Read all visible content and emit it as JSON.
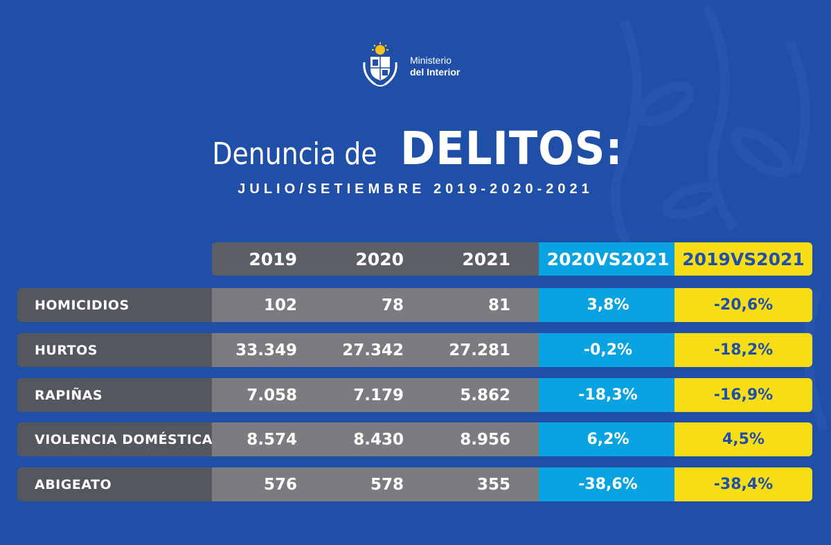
{
  "header": {
    "ministry_line1": "Ministerio",
    "ministry_line2": "del Interior",
    "title_light": "Denuncia de",
    "title_bold": "DELITOS:",
    "subtitle": "JULIO/SETIEMBRE 2019-2020-2021"
  },
  "colors": {
    "background": "#1f4fa6",
    "label_cell": "#54575e",
    "value_cell": "#7a7c80",
    "header_grey": "#5c5f66",
    "blue_column": "#0aa3e1",
    "yellow_column": "#f6dd15"
  },
  "icons": [
    "uruguay-coat-of-arms-icon"
  ],
  "chart_data": {
    "type": "table",
    "title": "Denuncia de DELITOS:",
    "subtitle": "JULIO/SETIEMBRE 2019-2020-2021",
    "columns": [
      "2019",
      "2020",
      "2021",
      "2020VS2021",
      "2019VS2021"
    ],
    "rows": [
      {
        "label": "HOMICIDIOS",
        "values": [
          "102",
          "78",
          "81",
          "3,8%",
          "-20,6%"
        ]
      },
      {
        "label": "HURTOS",
        "values": [
          "33.349",
          "27.342",
          "27.281",
          "-0,2%",
          "-18,2%"
        ]
      },
      {
        "label": "RAPIÑAS",
        "values": [
          "7.058",
          "7.179",
          "5.862",
          "-18,3%",
          "-16,9%"
        ]
      },
      {
        "label": "VIOLENCIA DOMÉSTICA",
        "values": [
          "8.574",
          "8.430",
          "8.956",
          "6,2%",
          "4,5%"
        ]
      },
      {
        "label": "ABIGEATO",
        "values": [
          "576",
          "578",
          "355",
          "-38,6%",
          "-38,4%"
        ]
      }
    ]
  }
}
